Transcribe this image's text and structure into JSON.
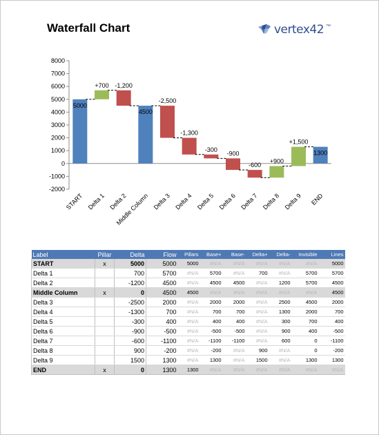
{
  "header": {
    "title": "Waterfall Chart",
    "logo_text": "vertex42",
    "logo_tm": "™"
  },
  "chart_data": {
    "type": "bar",
    "subtype": "waterfall",
    "title": "",
    "xlabel": "",
    "ylabel": "",
    "ylim": [
      -2000,
      8000
    ],
    "yticks": [
      -2000,
      -1000,
      0,
      1000,
      2000,
      3000,
      4000,
      5000,
      6000,
      7000,
      8000
    ],
    "grid": false,
    "legend": "none",
    "categories": [
      "START",
      "Delta 1",
      "Delta 2",
      "Middle Column",
      "Delta 3",
      "Delta 4",
      "Delta 5",
      "Delta 6",
      "Delta 7",
      "Delta 8",
      "Delta 9",
      "END"
    ],
    "steps": [
      {
        "kind": "pillar",
        "value": 5000,
        "label": "5000"
      },
      {
        "kind": "delta",
        "value": 700,
        "label": "+700"
      },
      {
        "kind": "delta",
        "value": -1200,
        "label": "-1,200"
      },
      {
        "kind": "pillar",
        "value": 4500,
        "label": "4500"
      },
      {
        "kind": "delta",
        "value": -2500,
        "label": "-2,500"
      },
      {
        "kind": "delta",
        "value": -1300,
        "label": "-1,300"
      },
      {
        "kind": "delta",
        "value": -300,
        "label": "-300"
      },
      {
        "kind": "delta",
        "value": -900,
        "label": "-900"
      },
      {
        "kind": "delta",
        "value": -600,
        "label": "-600"
      },
      {
        "kind": "delta",
        "value": 900,
        "label": "+900"
      },
      {
        "kind": "delta",
        "value": 1500,
        "label": "+1,500"
      },
      {
        "kind": "pillar",
        "value": 1300,
        "label": "1300"
      }
    ],
    "colors": {
      "pillar": "#4f81bd",
      "increase": "#9bbb59",
      "decrease": "#c0504d",
      "connector": "#000000"
    }
  },
  "table": {
    "columns": [
      "Label",
      "Pillar",
      "Delta",
      "Flow",
      "Pillars",
      "Base+",
      "Base-",
      "Delta+",
      "Delta-",
      "Invisible",
      "Lines"
    ],
    "rows": [
      [
        "START",
        "x",
        "5000",
        "5000",
        "5000",
        "#N/A",
        "#N/A",
        "#N/A",
        "#N/A",
        "#N/A",
        "5000"
      ],
      [
        "Delta 1",
        "",
        "700",
        "5700",
        "#N/A",
        "5700",
        "#N/A",
        "700",
        "#N/A",
        "5700",
        "5700"
      ],
      [
        "Delta 2",
        "",
        "-1200",
        "4500",
        "#N/A",
        "4500",
        "4500",
        "#N/A",
        "1200",
        "5700",
        "4500"
      ],
      [
        "Middle Column",
        "x",
        "0",
        "4500",
        "4500",
        "#N/A",
        "#N/A",
        "#N/A",
        "#N/A",
        "#N/A",
        "4500"
      ],
      [
        "Delta 3",
        "",
        "-2500",
        "2000",
        "#N/A",
        "2000",
        "2000",
        "#N/A",
        "2500",
        "4500",
        "2000"
      ],
      [
        "Delta 4",
        "",
        "-1300",
        "700",
        "#N/A",
        "700",
        "700",
        "#N/A",
        "1300",
        "2000",
        "700"
      ],
      [
        "Delta 5",
        "",
        "-300",
        "400",
        "#N/A",
        "400",
        "400",
        "#N/A",
        "300",
        "700",
        "400"
      ],
      [
        "Delta 6",
        "",
        "-900",
        "-500",
        "#N/A",
        "-500",
        "-500",
        "#N/A",
        "900",
        "400",
        "-500"
      ],
      [
        "Delta 7",
        "",
        "-600",
        "-1100",
        "#N/A",
        "-1100",
        "-1100",
        "#N/A",
        "600",
        "0",
        "-1100"
      ],
      [
        "Delta 8",
        "",
        "900",
        "-200",
        "#N/A",
        "-200",
        "#N/A",
        "900",
        "#N/A",
        "0",
        "-200"
      ],
      [
        "Delta 9",
        "",
        "1500",
        "1300",
        "#N/A",
        "1300",
        "#N/A",
        "1500",
        "#N/A",
        "1300",
        "1300"
      ],
      [
        "END",
        "x",
        "0",
        "1300",
        "1300",
        "#N/A",
        "#N/A",
        "#N/A",
        "#N/A",
        "#N/A",
        "#N/A"
      ]
    ]
  }
}
